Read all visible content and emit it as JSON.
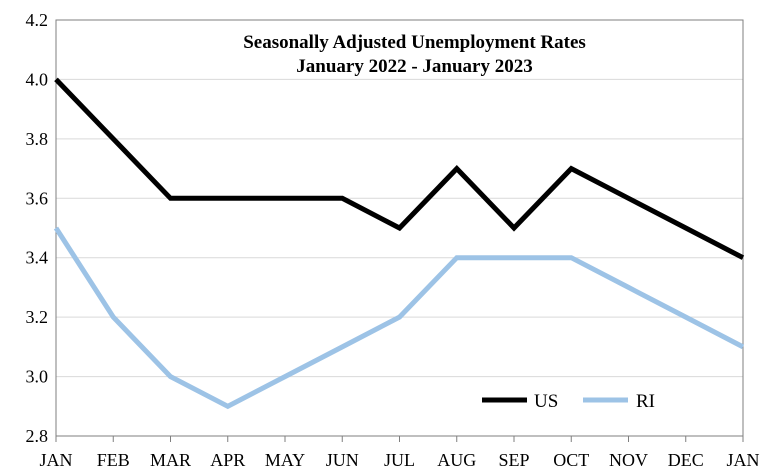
{
  "chart_data": {
    "type": "line",
    "title": "Seasonally Adjusted Unemployment Rates",
    "subtitle": "January 2022 - January 2023",
    "xlabel": "",
    "ylabel": "",
    "categories": [
      "JAN",
      "FEB",
      "MAR",
      "APR",
      "MAY",
      "JUN",
      "JUL",
      "AUG",
      "SEP",
      "OCT",
      "NOV",
      "DEC",
      "JAN"
    ],
    "y_ticks": [
      "2.8",
      "3.0",
      "3.2",
      "3.4",
      "3.6",
      "3.8",
      "4.0",
      "4.2"
    ],
    "ylim": [
      2.8,
      4.2
    ],
    "grid": "horizontal",
    "legend_position": "bottom-right",
    "series": [
      {
        "name": "US",
        "color": "#000000",
        "values": [
          4.0,
          3.8,
          3.6,
          3.6,
          3.6,
          3.6,
          3.5,
          3.7,
          3.5,
          3.7,
          3.6,
          3.5,
          3.4
        ]
      },
      {
        "name": "RI",
        "color": "#9dc3e6",
        "values": [
          3.5,
          3.2,
          3.0,
          2.9,
          3.0,
          3.1,
          3.2,
          3.4,
          3.4,
          3.4,
          3.3,
          3.2,
          3.1
        ]
      }
    ]
  }
}
